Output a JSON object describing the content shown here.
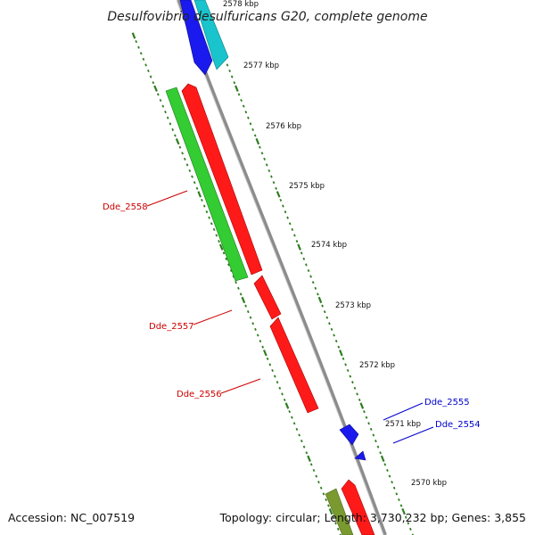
{
  "title": "Desulfovibrio desulfuricans G20, complete genome",
  "footer": {
    "accession": "Accession: NC_007519",
    "topology": "Topology: circular; Length: 3,730,232 bp; Genes: 3,855"
  },
  "colors": {
    "backbone": "#8c8c8c",
    "tick": "#2e7d1f",
    "red_gene": "#ff1a1a",
    "green_gene": "#33cc33",
    "blue_gene": "#1a1aee",
    "cyan_gene": "#19c4cc",
    "olive_gene": "#7a9a30",
    "label_red": "#cc0000",
    "label_blue": "#0000cc"
  },
  "kbp_labels": [
    "2578 kbp",
    "2577 kbp",
    "2576 kbp",
    "2575 kbp",
    "2574 kbp",
    "2573 kbp",
    "2572 kbp",
    "2571 kbp",
    "2570 kbp"
  ],
  "gene_labels": [
    {
      "name": "Dde_2558",
      "color": "red"
    },
    {
      "name": "Dde_2557",
      "color": "red"
    },
    {
      "name": "Dde_2556",
      "color": "red"
    },
    {
      "name": "Dde_2555",
      "color": "blue"
    },
    {
      "name": "Dde_2554",
      "color": "blue"
    }
  ]
}
